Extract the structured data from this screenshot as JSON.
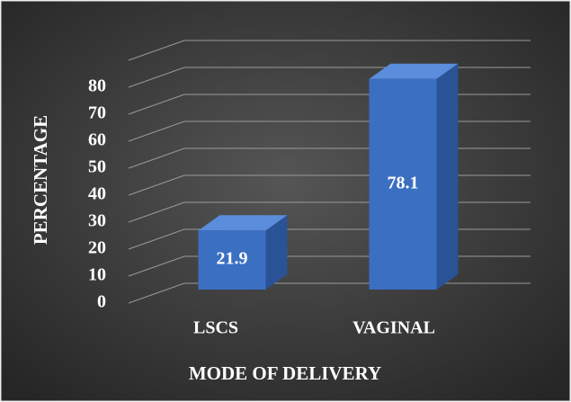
{
  "chart_data": {
    "type": "bar3d",
    "x_label": "MODE OF DELIVERY",
    "y_label": "PERCENTAGE",
    "categories": [
      "LSCS",
      "VAGINAL"
    ],
    "values": [
      21.9,
      78.1
    ],
    "color": "#3b6fc2",
    "ylim": [
      0,
      90
    ],
    "yticks": [
      0,
      10,
      20,
      30,
      40,
      50,
      60,
      70,
      80
    ],
    "grid": true
  }
}
